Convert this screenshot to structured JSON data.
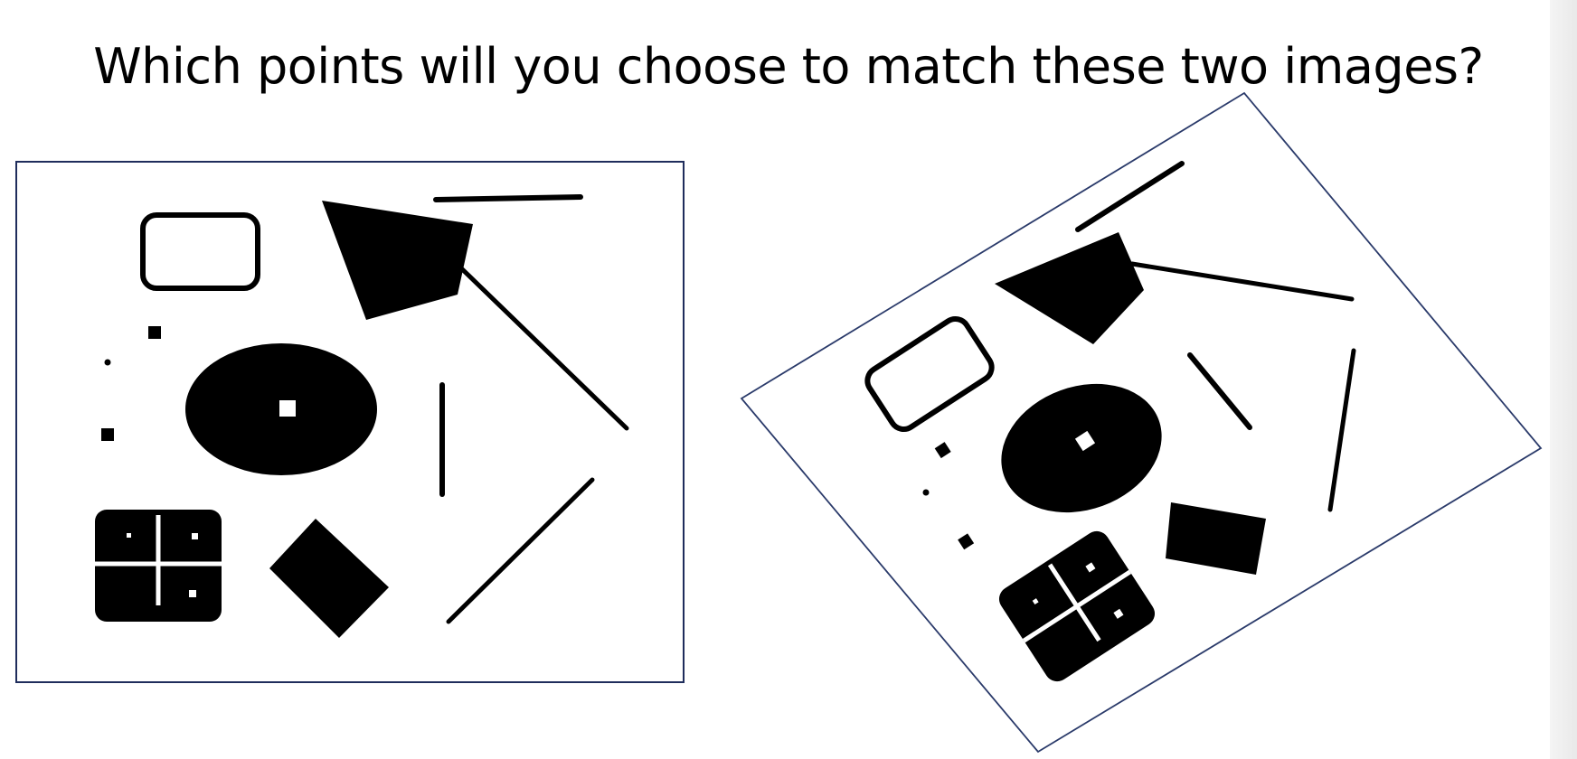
{
  "slide": {
    "title": "Which points will you choose to match these two images?"
  },
  "figures": {
    "original": {
      "frame_color": "#1f2d5c",
      "shapes": [
        "rounded-rectangle-outline",
        "quadrilateral-filled",
        "long-line-top",
        "diagonal-line-right",
        "small-square-1",
        "dot",
        "small-square-2",
        "ellipse-with-hole",
        "vertical-line",
        "window-square",
        "diamond-filled",
        "diagonal-line-bottom"
      ]
    },
    "rotated": {
      "frame_color": "#2a3a6a",
      "shapes": [
        "rounded-rectangle-outline",
        "quadrilateral-filled",
        "long-line-top",
        "diagonal-line-right",
        "small-square-1",
        "dot",
        "small-square-2",
        "ellipse-with-hole",
        "vertical-line",
        "window-square",
        "diamond-filled",
        "diagonal-line-bottom"
      ]
    }
  }
}
